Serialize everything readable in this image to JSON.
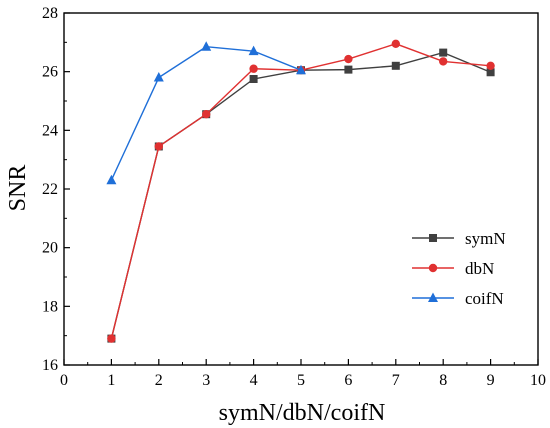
{
  "chart_data": {
    "type": "line",
    "xlabel": "symN/dbN/coifN",
    "ylabel": "SNR",
    "xlim": [
      0,
      10
    ],
    "ylim": [
      16,
      28
    ],
    "xticks": [
      "0",
      "1",
      "2",
      "3",
      "4",
      "5",
      "6",
      "7",
      "8",
      "9",
      "10"
    ],
    "yticks": [
      "16",
      "18",
      "20",
      "22",
      "24",
      "26",
      "28"
    ],
    "grid": false,
    "legend_position": "right-lower",
    "series": [
      {
        "name": "symN",
        "color": "#404040",
        "marker": "square",
        "x": [
          1,
          2,
          3,
          4,
          5,
          6,
          7,
          8,
          9
        ],
        "y": [
          16.9,
          23.45,
          24.55,
          25.75,
          26.05,
          26.07,
          26.2,
          26.65,
          25.98
        ]
      },
      {
        "name": "dbN",
        "color": "#e03131",
        "marker": "circle",
        "x": [
          1,
          2,
          3,
          4,
          5,
          6,
          7,
          8,
          9
        ],
        "y": [
          16.9,
          23.45,
          24.55,
          26.1,
          26.05,
          26.43,
          26.95,
          26.35,
          26.2
        ]
      },
      {
        "name": "coifN",
        "color": "#1f6fd8",
        "marker": "triangle",
        "x": [
          1,
          2,
          3,
          4,
          5
        ],
        "y": [
          22.3,
          25.8,
          26.85,
          26.7,
          26.05
        ]
      }
    ]
  }
}
